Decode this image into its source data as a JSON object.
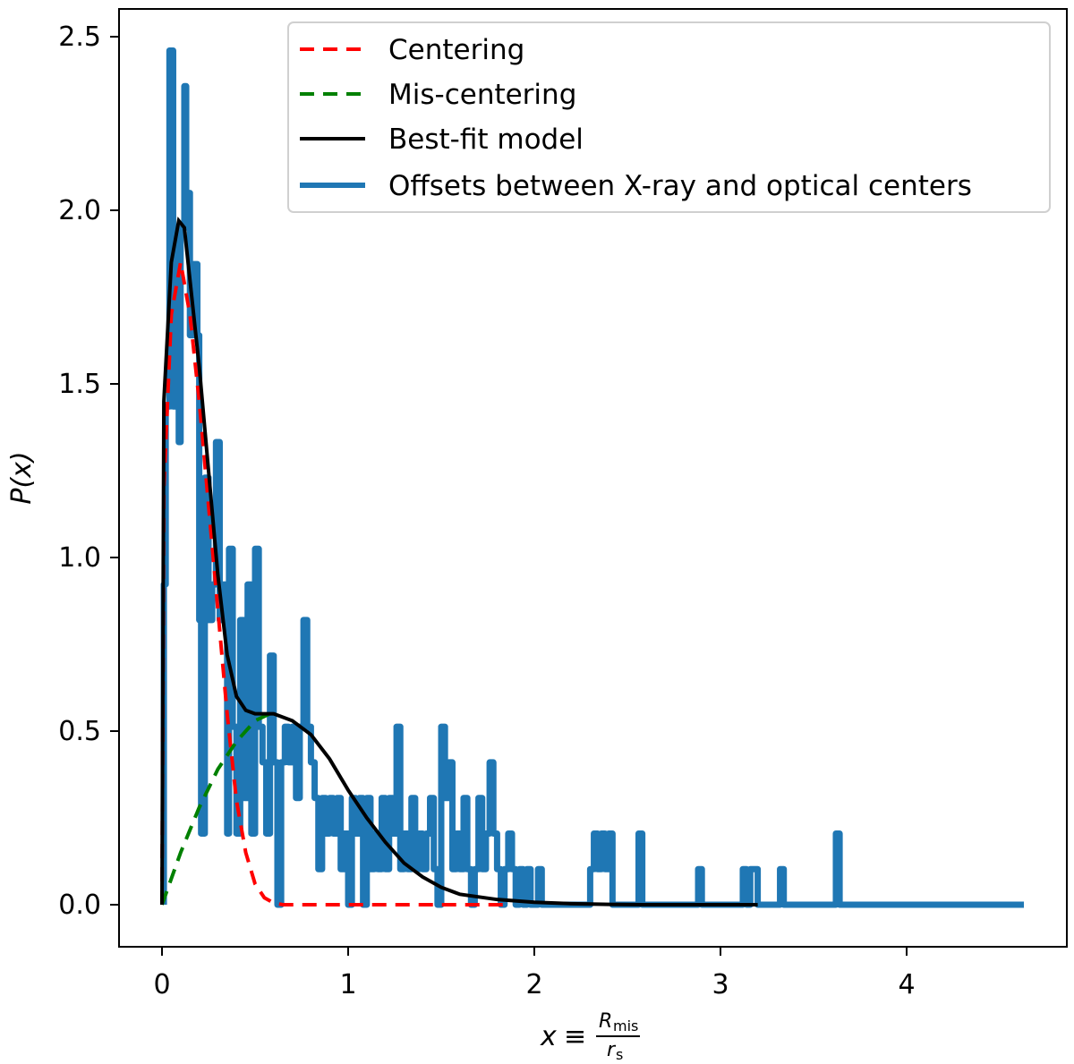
{
  "chart_data": {
    "type": "line",
    "title": "",
    "xlabel": {
      "lhs": "x",
      "op": "≡",
      "num": "R",
      "num_sub": "mis",
      "den": "r",
      "den_sub": "s"
    },
    "ylabel": {
      "text": "P(x)"
    },
    "xlim": [
      -0.23,
      4.86
    ],
    "ylim": [
      -0.12,
      2.58
    ],
    "xticks": [
      0,
      1,
      2,
      3,
      4
    ],
    "xtick_labels": [
      "0",
      "1",
      "2",
      "3",
      "4"
    ],
    "yticks": [
      0.0,
      0.5,
      1.0,
      1.5,
      2.0,
      2.5
    ],
    "ytick_labels": [
      "0.0",
      "0.5",
      "1.0",
      "1.5",
      "2.0",
      "2.5"
    ],
    "grid": false,
    "legend_position": "top-right",
    "colors": {
      "centering": "#ff0000",
      "miscentering": "#008000",
      "bestfit": "#000000",
      "offsets": "#1f77b4"
    },
    "series": [
      {
        "name": "Centering",
        "style": "dashed",
        "color": "#ff0000",
        "points": [
          [
            0,
            0
          ],
          [
            0.01,
            1.2
          ],
          [
            0.05,
            1.7
          ],
          [
            0.1,
            1.85
          ],
          [
            0.15,
            1.7
          ],
          [
            0.2,
            1.45
          ],
          [
            0.25,
            1.15
          ],
          [
            0.3,
            0.85
          ],
          [
            0.35,
            0.55
          ],
          [
            0.4,
            0.3
          ],
          [
            0.45,
            0.15
          ],
          [
            0.5,
            0.06
          ],
          [
            0.55,
            0.02
          ],
          [
            0.6,
            0.005
          ],
          [
            0.65,
            0
          ],
          [
            1.85,
            0
          ]
        ]
      },
      {
        "name": "Mis-centering",
        "style": "dashed",
        "color": "#008000",
        "points": [
          [
            0,
            0
          ],
          [
            0.1,
            0.15
          ],
          [
            0.2,
            0.28
          ],
          [
            0.3,
            0.39
          ],
          [
            0.4,
            0.47
          ],
          [
            0.5,
            0.53
          ],
          [
            0.58,
            0.55
          ]
        ]
      },
      {
        "name": "Best-fit model",
        "style": "solid",
        "color": "#000000",
        "points": [
          [
            0,
            0
          ],
          [
            0.01,
            1.45
          ],
          [
            0.05,
            1.85
          ],
          [
            0.09,
            1.97
          ],
          [
            0.12,
            1.95
          ],
          [
            0.15,
            1.8
          ],
          [
            0.2,
            1.55
          ],
          [
            0.25,
            1.25
          ],
          [
            0.3,
            0.95
          ],
          [
            0.35,
            0.72
          ],
          [
            0.4,
            0.6
          ],
          [
            0.45,
            0.56
          ],
          [
            0.5,
            0.55
          ],
          [
            0.6,
            0.55
          ],
          [
            0.7,
            0.53
          ],
          [
            0.8,
            0.49
          ],
          [
            0.9,
            0.42
          ],
          [
            1.0,
            0.33
          ],
          [
            1.1,
            0.25
          ],
          [
            1.2,
            0.18
          ],
          [
            1.3,
            0.12
          ],
          [
            1.4,
            0.08
          ],
          [
            1.5,
            0.05
          ],
          [
            1.6,
            0.03
          ],
          [
            1.8,
            0.015
          ],
          [
            2.0,
            0.007
          ],
          [
            2.2,
            0.003
          ],
          [
            2.4,
            0.001
          ],
          [
            2.6,
            0
          ],
          [
            3.2,
            0
          ]
        ]
      },
      {
        "name": "Offsets between X-ray and optical centers",
        "style": "step",
        "color": "#1f77b4",
        "quantum": 0.1025,
        "steps": [
          [
            0.01,
            9
          ],
          [
            0.02,
            14
          ],
          [
            0.04,
            24
          ],
          [
            0.06,
            14
          ],
          [
            0.07,
            19
          ],
          [
            0.09,
            13
          ],
          [
            0.1,
            19
          ],
          [
            0.12,
            23
          ],
          [
            0.13,
            20
          ],
          [
            0.15,
            16
          ],
          [
            0.17,
            18
          ],
          [
            0.19,
            16
          ],
          [
            0.2,
            8
          ],
          [
            0.21,
            2
          ],
          [
            0.23,
            12
          ],
          [
            0.25,
            8
          ],
          [
            0.27,
            9
          ],
          [
            0.29,
            13
          ],
          [
            0.31,
            8
          ],
          [
            0.33,
            9
          ],
          [
            0.35,
            2
          ],
          [
            0.36,
            10
          ],
          [
            0.38,
            5
          ],
          [
            0.4,
            2
          ],
          [
            0.42,
            8
          ],
          [
            0.44,
            3
          ],
          [
            0.46,
            9
          ],
          [
            0.48,
            2
          ],
          [
            0.5,
            10
          ],
          [
            0.52,
            5
          ],
          [
            0.54,
            4
          ],
          [
            0.56,
            2
          ],
          [
            0.58,
            7
          ],
          [
            0.6,
            4
          ],
          [
            0.62,
            0
          ],
          [
            0.64,
            4
          ],
          [
            0.66,
            5
          ],
          [
            0.68,
            4
          ],
          [
            0.7,
            5
          ],
          [
            0.72,
            3
          ],
          [
            0.74,
            5
          ],
          [
            0.76,
            8
          ],
          [
            0.78,
            5
          ],
          [
            0.8,
            4
          ],
          [
            0.82,
            3
          ],
          [
            0.84,
            1
          ],
          [
            0.86,
            3
          ],
          [
            0.88,
            2
          ],
          [
            0.9,
            3
          ],
          [
            0.92,
            2
          ],
          [
            0.94,
            3
          ],
          [
            0.96,
            1
          ],
          [
            0.98,
            2
          ],
          [
            1.0,
            0
          ],
          [
            1.02,
            3
          ],
          [
            1.04,
            2
          ],
          [
            1.06,
            3
          ],
          [
            1.08,
            0
          ],
          [
            1.1,
            3
          ],
          [
            1.12,
            1
          ],
          [
            1.14,
            2
          ],
          [
            1.16,
            1
          ],
          [
            1.18,
            3
          ],
          [
            1.2,
            1
          ],
          [
            1.22,
            3
          ],
          [
            1.24,
            2
          ],
          [
            1.26,
            5
          ],
          [
            1.28,
            1
          ],
          [
            1.3,
            2
          ],
          [
            1.32,
            1
          ],
          [
            1.34,
            3
          ],
          [
            1.36,
            1
          ],
          [
            1.38,
            2
          ],
          [
            1.4,
            1
          ],
          [
            1.42,
            2
          ],
          [
            1.44,
            3
          ],
          [
            1.46,
            1
          ],
          [
            1.48,
            0
          ],
          [
            1.5,
            5
          ],
          [
            1.52,
            3
          ],
          [
            1.54,
            4
          ],
          [
            1.56,
            1
          ],
          [
            1.58,
            2
          ],
          [
            1.6,
            1
          ],
          [
            1.62,
            3
          ],
          [
            1.64,
            1
          ],
          [
            1.66,
            0
          ],
          [
            1.68,
            1
          ],
          [
            1.7,
            3
          ],
          [
            1.72,
            1
          ],
          [
            1.74,
            2
          ],
          [
            1.76,
            4
          ],
          [
            1.78,
            2
          ],
          [
            1.8,
            1
          ],
          [
            1.82,
            0
          ],
          [
            1.84,
            1
          ],
          [
            1.86,
            2
          ],
          [
            1.88,
            1
          ],
          [
            1.9,
            0
          ],
          [
            1.92,
            1
          ],
          [
            1.94,
            0
          ],
          [
            1.96,
            1
          ],
          [
            1.98,
            0
          ],
          [
            2.02,
            1
          ],
          [
            2.04,
            0
          ],
          [
            2.3,
            1
          ],
          [
            2.32,
            2
          ],
          [
            2.34,
            1
          ],
          [
            2.36,
            2
          ],
          [
            2.38,
            1
          ],
          [
            2.4,
            2
          ],
          [
            2.42,
            0
          ],
          [
            2.56,
            2
          ],
          [
            2.58,
            0
          ],
          [
            2.88,
            1
          ],
          [
            2.9,
            0
          ],
          [
            3.12,
            1
          ],
          [
            3.14,
            0
          ],
          [
            3.16,
            1
          ],
          [
            3.2,
            0
          ],
          [
            3.32,
            1
          ],
          [
            3.34,
            0
          ],
          [
            3.62,
            2
          ],
          [
            3.64,
            0
          ],
          [
            4.63,
            0
          ]
        ]
      }
    ]
  }
}
